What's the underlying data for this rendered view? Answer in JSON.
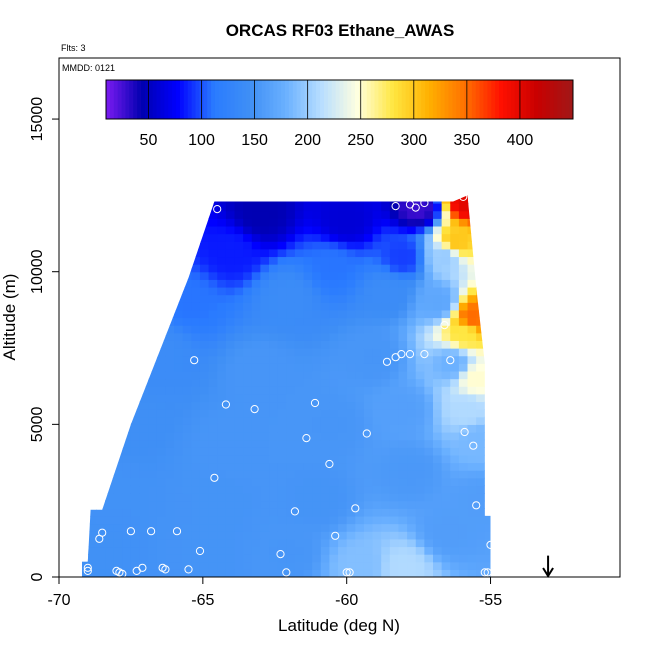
{
  "chart_data": {
    "type": "heatmap",
    "title": "ORCAS RF03 Ethane_AWAS",
    "subtitle_flts": "Flts: 3",
    "subtitle_mmdd": "MMDD: 0121",
    "xlabel": "Latitude (deg N)",
    "ylabel": "Altitude (m)",
    "xlim": [
      -70,
      -50.5
    ],
    "ylim": [
      0,
      17000
    ],
    "x_ticks": [
      -70,
      -65,
      -60,
      -55
    ],
    "x_tick_labels": [
      "-70",
      "-65",
      "-60",
      "-55"
    ],
    "y_ticks": [
      0,
      5000,
      10000,
      15000
    ],
    "y_tick_labels": [
      "0",
      "5000",
      "10000",
      "15000"
    ],
    "colorbar": {
      "range": [
        10,
        450
      ],
      "ticks": [
        50,
        100,
        150,
        200,
        250,
        300,
        350,
        400
      ],
      "tick_labels": [
        "50",
        "100",
        "150",
        "200",
        "250",
        "300",
        "350",
        "400"
      ],
      "colors": [
        "#7c1bf2",
        "#0000b0",
        "#0000ff",
        "#2a7bff",
        "#3f8ff5",
        "#6ab0ff",
        "#b8deff",
        "#ffffe0",
        "#ffe640",
        "#ffb000",
        "#ff7000",
        "#ff1000",
        "#c80000",
        "#a01818"
      ]
    },
    "field_points": [
      {
        "lat": -57.5,
        "alt": 12100,
        "value": 28
      },
      {
        "lat": -63.0,
        "alt": 11900,
        "value": 45
      },
      {
        "lat": -60.0,
        "alt": 11700,
        "value": 60
      },
      {
        "lat": -64.0,
        "alt": 10700,
        "value": 85
      },
      {
        "lat": -60.5,
        "alt": 10200,
        "value": 110
      },
      {
        "lat": -58.0,
        "alt": 10500,
        "value": 95
      },
      {
        "lat": -65.5,
        "alt": 9000,
        "value": 110
      },
      {
        "lat": -62.0,
        "alt": 9200,
        "value": 140
      },
      {
        "lat": -58.5,
        "alt": 9300,
        "value": 140
      },
      {
        "lat": -66.5,
        "alt": 7500,
        "value": 140
      },
      {
        "lat": -63.0,
        "alt": 6800,
        "value": 152
      },
      {
        "lat": -59.0,
        "alt": 7200,
        "value": 152
      },
      {
        "lat": -67.5,
        "alt": 5000,
        "value": 145
      },
      {
        "lat": -64.0,
        "alt": 4200,
        "value": 152
      },
      {
        "lat": -60.5,
        "alt": 5000,
        "value": 152
      },
      {
        "lat": -58.0,
        "alt": 5500,
        "value": 162
      },
      {
        "lat": -68.0,
        "alt": 2800,
        "value": 148
      },
      {
        "lat": -64.5,
        "alt": 2500,
        "value": 150
      },
      {
        "lat": -61.0,
        "alt": 2500,
        "value": 150
      },
      {
        "lat": -57.8,
        "alt": 3500,
        "value": 155
      },
      {
        "lat": -68.5,
        "alt": 1000,
        "value": 147
      },
      {
        "lat": -65.0,
        "alt": 800,
        "value": 150
      },
      {
        "lat": -62.0,
        "alt": 800,
        "value": 152
      },
      {
        "lat": -59.5,
        "alt": 400,
        "value": 190
      },
      {
        "lat": -58.0,
        "alt": 300,
        "value": 210
      },
      {
        "lat": -56.5,
        "alt": 1500,
        "value": 160
      },
      {
        "lat": -55.8,
        "alt": 12300,
        "value": 400
      },
      {
        "lat": -56.2,
        "alt": 11000,
        "value": 300
      },
      {
        "lat": -56.6,
        "alt": 10500,
        "value": 200
      },
      {
        "lat": -55.6,
        "alt": 8500,
        "value": 350
      },
      {
        "lat": -55.9,
        "alt": 8000,
        "value": 280
      },
      {
        "lat": -55.5,
        "alt": 6500,
        "value": 250
      },
      {
        "lat": -55.8,
        "alt": 5500,
        "value": 210
      },
      {
        "lat": -56.3,
        "alt": 7000,
        "value": 180
      },
      {
        "lat": -56.8,
        "alt": 9000,
        "value": 170
      },
      {
        "lat": -55.4,
        "alt": 4500,
        "value": 185
      },
      {
        "lat": -55.3,
        "alt": 2500,
        "value": 160
      }
    ],
    "domain_polygon": [
      [
        -69.2,
        500
      ],
      [
        -69.0,
        500
      ],
      [
        -68.9,
        2200
      ],
      [
        -68.5,
        2200
      ],
      [
        -67.5,
        5000
      ],
      [
        -65.5,
        9800
      ],
      [
        -64.6,
        12300
      ],
      [
        -56.3,
        12300
      ],
      [
        -55.8,
        12500
      ],
      [
        -55.5,
        9500
      ],
      [
        -55.2,
        7000
      ],
      [
        -55.2,
        2000
      ],
      [
        -55.0,
        2000
      ],
      [
        -55.0,
        0
      ],
      [
        -69.2,
        0
      ]
    ],
    "sample_points": [
      [
        -64.5,
        12050
      ],
      [
        -58.3,
        12150
      ],
      [
        -57.8,
        12200
      ],
      [
        -57.6,
        12100
      ],
      [
        -57.3,
        12250
      ],
      [
        -55.95,
        12450
      ],
      [
        -56.6,
        8250
      ],
      [
        -57.8,
        7300
      ],
      [
        -58.1,
        7300
      ],
      [
        -58.3,
        7200
      ],
      [
        -57.3,
        7300
      ],
      [
        -56.4,
        7100
      ],
      [
        -58.6,
        7050
      ],
      [
        -65.3,
        7100
      ],
      [
        -64.2,
        5650
      ],
      [
        -63.2,
        5500
      ],
      [
        -61.1,
        5700
      ],
      [
        -61.4,
        4550
      ],
      [
        -59.3,
        4700
      ],
      [
        -55.9,
        4750
      ],
      [
        -55.6,
        4300
      ],
      [
        -60.6,
        3700
      ],
      [
        -64.6,
        3250
      ],
      [
        -61.8,
        2150
      ],
      [
        -59.7,
        2250
      ],
      [
        -55.5,
        2350
      ],
      [
        -68.5,
        1450
      ],
      [
        -68.6,
        1250
      ],
      [
        -67.5,
        1500
      ],
      [
        -66.8,
        1500
      ],
      [
        -65.9,
        1500
      ],
      [
        -60.4,
        1350
      ],
      [
        -55.0,
        1050
      ],
      [
        -65.1,
        850
      ],
      [
        -62.3,
        750
      ],
      [
        -69.0,
        300
      ],
      [
        -69.0,
        200
      ],
      [
        -67.9,
        150
      ],
      [
        -68.0,
        200
      ],
      [
        -67.8,
        100
      ],
      [
        -67.1,
        300
      ],
      [
        -67.3,
        200
      ],
      [
        -66.3,
        250
      ],
      [
        -66.4,
        300
      ],
      [
        -65.5,
        250
      ],
      [
        -62.1,
        150
      ],
      [
        -60.0,
        150
      ],
      [
        -59.9,
        150
      ],
      [
        -55.1,
        150
      ],
      [
        -55.2,
        150
      ]
    ],
    "arrow_marker": {
      "lat": -53.0,
      "alt_top": 700,
      "alt_bottom": 0
    }
  }
}
